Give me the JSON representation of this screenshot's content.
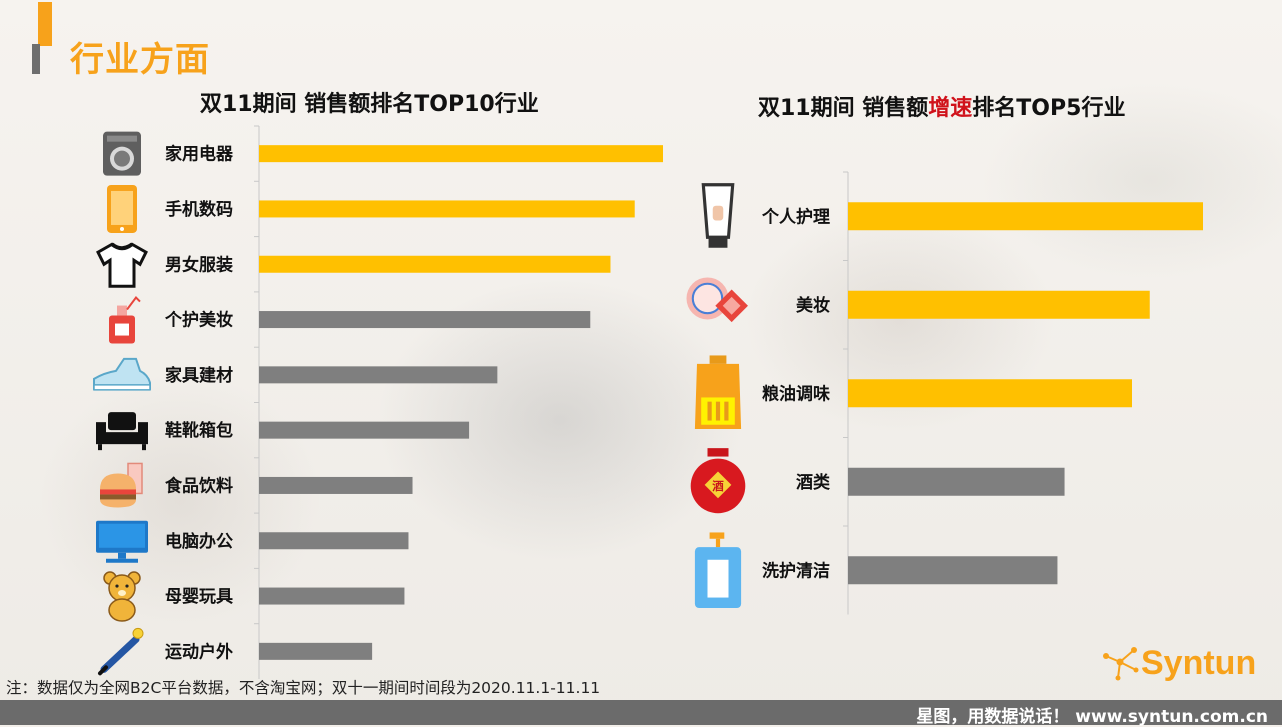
{
  "page": {
    "title": "行业方面",
    "footnote": "注：数据仅为全网B2C平台数据，不含淘宝网；双十一期间时间段为2020.11.1-11.11",
    "slogan": "星图，用数据说话！ www.syntun.com.cn",
    "brand": "Syntun"
  },
  "colors": {
    "accent": "#f7a21b",
    "highlight_bar": "#ffc000",
    "normal_bar": "#7f7f7f",
    "title_highlight": "#d0121b"
  },
  "chart_data": [
    {
      "type": "bar",
      "orientation": "horizontal",
      "title_parts": [
        "双11期间  销售额排名TOP10行业"
      ],
      "categories": [
        "家用电器",
        "手机数码",
        "男女服装",
        "个护美妆",
        "家具建材",
        "鞋靴箱包",
        "食品饮料",
        "电脑办公",
        "母婴玩具",
        "运动户外"
      ],
      "values": [
        100,
        93,
        87,
        82,
        59,
        52,
        38,
        37,
        36,
        28
      ],
      "highlight": [
        true,
        true,
        true,
        false,
        false,
        false,
        false,
        false,
        false,
        false
      ],
      "icons": [
        "washing-machine-icon",
        "smartphone-icon",
        "tshirt-icon",
        "perfume-icon",
        "sneaker-icon",
        "sofa-icon",
        "burger-drink-icon",
        "monitor-icon",
        "teddy-bear-icon",
        "baseball-bat-icon"
      ],
      "xlim": [
        0,
        100
      ],
      "axis_labels": "none",
      "grid": false
    },
    {
      "type": "bar",
      "orientation": "horizontal",
      "title_parts": [
        "双11期间  销售额",
        "增速",
        "排名TOP5行业"
      ],
      "categories": [
        "个人护理",
        "美妆",
        "粮油调味",
        "酒类",
        "洗护清洁"
      ],
      "values": [
        100,
        85,
        80,
        61,
        59
      ],
      "highlight": [
        true,
        true,
        true,
        false,
        false
      ],
      "icons": [
        "lotion-tube-icon",
        "compact-mirror-icon",
        "oil-bottle-icon",
        "liquor-jar-icon",
        "pump-bottle-icon"
      ],
      "xlim": [
        0,
        100
      ],
      "axis_labels": "none",
      "grid": false
    }
  ]
}
